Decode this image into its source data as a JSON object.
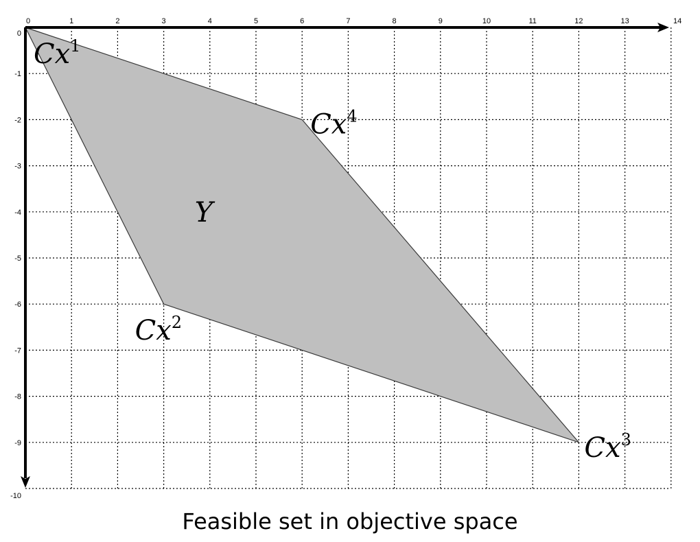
{
  "caption": "Feasible set in objective space",
  "colors": {
    "region_fill": "#bfbfbf",
    "region_stroke": "#3a3a3a",
    "grid": "#000000",
    "axis": "#000000"
  },
  "axes": {
    "x_range": [
      0,
      14
    ],
    "y_range": [
      -10,
      0
    ],
    "grid": "dotted",
    "x_tick_labels": [
      "0",
      "1",
      "2",
      "3",
      "4",
      "5",
      "6",
      "7",
      "8",
      "9",
      "10",
      "11",
      "12",
      "13",
      "14"
    ],
    "y_tick_labels": [
      "0",
      "-1",
      "-2",
      "-3",
      "-4",
      "-5",
      "-6",
      "-7",
      "-8",
      "-9",
      "-10"
    ]
  },
  "region": {
    "label": "Y",
    "label_at": [
      4,
      -4
    ],
    "vertices": [
      {
        "name": "Cx1",
        "base": "Cx",
        "sup": "1",
        "x": 0,
        "y": 0
      },
      {
        "name": "Cx4",
        "base": "Cx",
        "sup": "4",
        "x": 6,
        "y": -2
      },
      {
        "name": "Cx3",
        "base": "Cx",
        "sup": "3",
        "x": 12,
        "y": -9
      },
      {
        "name": "Cx2",
        "base": "Cx",
        "sup": "2",
        "x": 3,
        "y": -6
      }
    ]
  }
}
